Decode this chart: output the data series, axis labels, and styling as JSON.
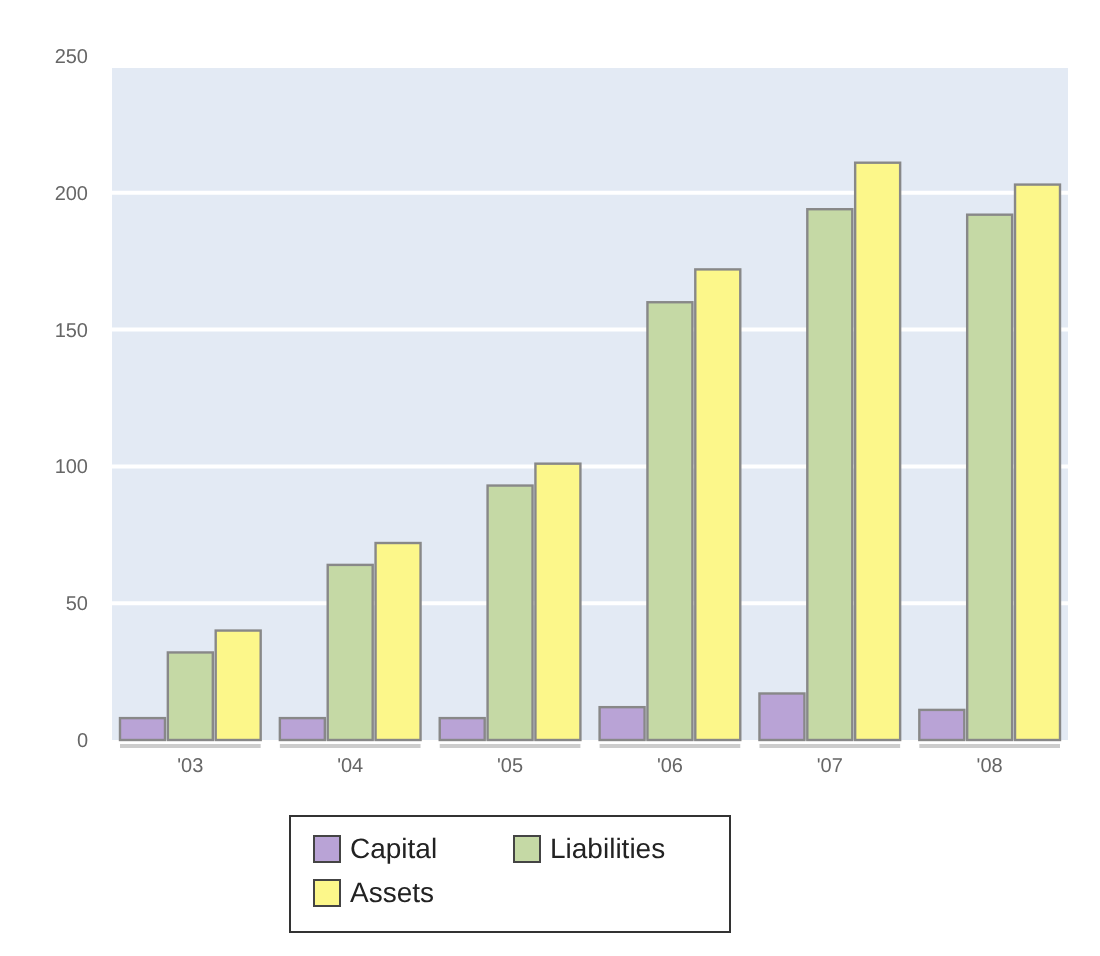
{
  "chart_data": {
    "type": "bar",
    "categories": [
      "'03",
      "'04",
      "'05",
      "'06",
      "'07",
      "'08"
    ],
    "series": [
      {
        "name": "Capital",
        "color": "#b9a3d6",
        "values": [
          8,
          8,
          8,
          12,
          17,
          11
        ]
      },
      {
        "name": "Liabilities",
        "color": "#c5d9a5",
        "values": [
          32,
          64,
          93,
          160,
          194,
          192
        ]
      },
      {
        "name": "Assets",
        "color": "#fcf78a",
        "values": [
          40,
          72,
          101,
          172,
          211,
          203
        ]
      }
    ],
    "ylim": [
      0,
      250
    ],
    "yticks": [
      0,
      50,
      100,
      150,
      200,
      250
    ],
    "grid": "y",
    "legend": "bottom"
  }
}
